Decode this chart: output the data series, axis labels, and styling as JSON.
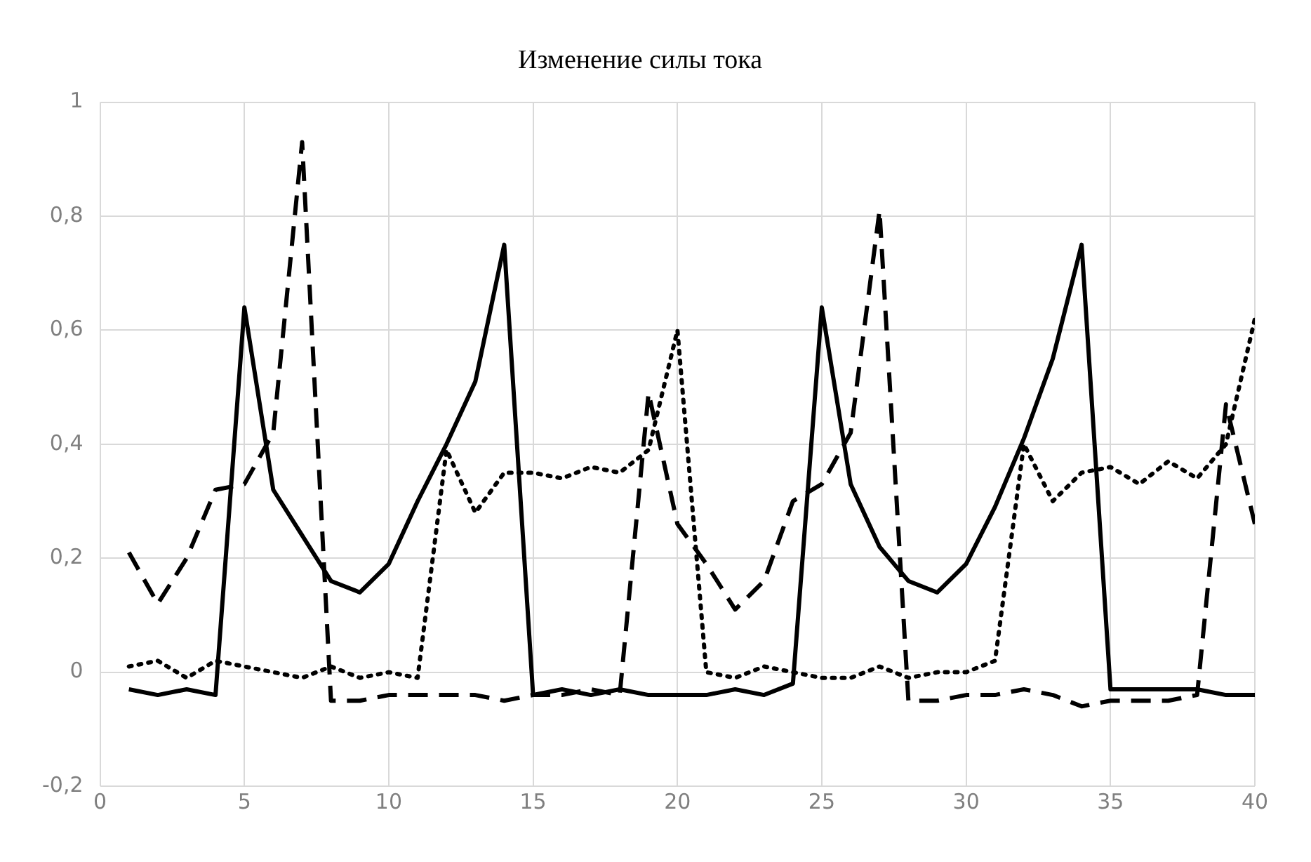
{
  "chart_data": {
    "type": "line",
    "title": "Изменение силы тока",
    "x": [
      1,
      2,
      3,
      4,
      5,
      6,
      7,
      8,
      9,
      10,
      11,
      12,
      13,
      14,
      15,
      16,
      17,
      18,
      19,
      20,
      21,
      22,
      23,
      24,
      25,
      26,
      27,
      28,
      29,
      30,
      31,
      32,
      33,
      34,
      35,
      36,
      37,
      38,
      39,
      40
    ],
    "series": [
      {
        "color": "#000000",
        "line_style": "solid",
        "values": [
          -0.03,
          -0.04,
          -0.03,
          -0.04,
          0.64,
          0.32,
          0.24,
          0.16,
          0.14,
          0.19,
          0.3,
          0.4,
          0.51,
          0.75,
          -0.04,
          -0.03,
          -0.04,
          -0.03,
          -0.04,
          -0.04,
          -0.04,
          -0.03,
          -0.04,
          -0.02,
          0.64,
          0.33,
          0.22,
          0.16,
          0.14,
          0.19,
          0.29,
          0.41,
          0.55,
          0.75,
          -0.03,
          -0.03,
          -0.03,
          -0.03,
          -0.04,
          -0.04
        ]
      },
      {
        "color": "#000000",
        "line_style": "dashed",
        "values": [
          0.21,
          0.12,
          0.2,
          0.32,
          0.33,
          0.42,
          0.93,
          -0.05,
          -0.05,
          -0.04,
          -0.04,
          -0.04,
          -0.04,
          -0.05,
          -0.04,
          -0.04,
          -0.03,
          -0.04,
          0.49,
          0.26,
          0.19,
          0.11,
          0.16,
          0.3,
          0.33,
          0.42,
          0.81,
          -0.05,
          -0.05,
          -0.04,
          -0.04,
          -0.03,
          -0.04,
          -0.06,
          -0.05,
          -0.05,
          -0.05,
          -0.04,
          0.47,
          0.26
        ]
      },
      {
        "color": "#000000",
        "line_style": "dotted",
        "values": [
          0.01,
          0.02,
          -0.01,
          0.02,
          0.01,
          0,
          -0.01,
          0.01,
          -0.01,
          0,
          -0.01,
          0.39,
          0.28,
          0.35,
          0.35,
          0.34,
          0.36,
          0.35,
          0.39,
          0.6,
          0,
          -0.01,
          0.01,
          0,
          -0.01,
          -0.01,
          0.01,
          -0.01,
          0,
          0,
          0.02,
          0.4,
          0.3,
          0.35,
          0.36,
          0.33,
          0.37,
          0.34,
          0.4,
          0.62
        ]
      }
    ],
    "xlim": [
      0,
      40
    ],
    "xticks": [
      0,
      5,
      10,
      15,
      20,
      25,
      30,
      35,
      40
    ],
    "ylim": [
      -0.2,
      1
    ],
    "yticks": [
      {
        "value": -0.2,
        "label": "-0,2"
      },
      0,
      {
        "value": 0.2,
        "label": "0,2"
      },
      {
        "value": 0.4,
        "label": "0,4"
      },
      {
        "value": 0.6,
        "label": "0,6"
      },
      {
        "value": 0.8,
        "label": "0,8"
      },
      1
    ],
    "grid": true,
    "legend": false,
    "marker": "none"
  }
}
